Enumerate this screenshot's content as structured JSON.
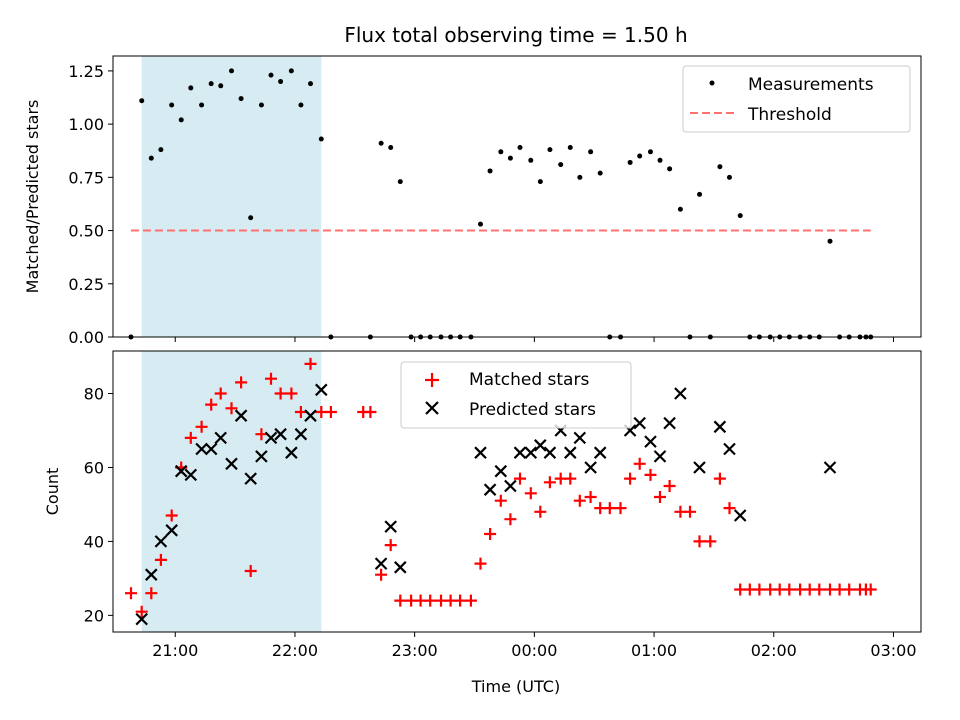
{
  "title": "Flux total observing time = 1.50 h",
  "colors": {
    "measurement": "#000000",
    "threshold": "#ff7070",
    "matched": "#ff0000",
    "predicted": "#000000",
    "shade": "#add8e6"
  },
  "chart_data": [
    {
      "type": "scatter",
      "ylabel": "Matched/Predicted stars",
      "xlim": [
        20.48,
        27.23
      ],
      "ylim": [
        0,
        1.32
      ],
      "y_ticks": [
        "0.00",
        "0.25",
        "0.50",
        "0.75",
        "1.00",
        "1.25"
      ],
      "y_tick_values": [
        0,
        0.25,
        0.5,
        0.75,
        1.0,
        1.25
      ],
      "shaded_x_range": [
        20.72,
        22.22
      ],
      "legend": {
        "location": "upper right",
        "entries": [
          "Measurements",
          "Threshold"
        ]
      },
      "threshold": {
        "name": "Threshold",
        "y": 0.5,
        "x_range": [
          20.63,
          26.81
        ],
        "style": "dashed"
      },
      "series": [
        {
          "name": "Measurements",
          "marker": "dot",
          "x": [
            20.63,
            20.72,
            20.8,
            20.88,
            20.97,
            21.05,
            21.13,
            21.22,
            21.3,
            21.38,
            21.47,
            21.55,
            21.63,
            21.72,
            21.8,
            21.88,
            21.97,
            22.05,
            22.13,
            22.22,
            22.3,
            22.63,
            22.72,
            22.8,
            22.88,
            22.97,
            23.05,
            23.13,
            23.22,
            23.3,
            23.38,
            23.47,
            23.55,
            23.63,
            23.72,
            23.8,
            23.88,
            23.97,
            24.05,
            24.13,
            24.22,
            24.3,
            24.38,
            24.47,
            24.55,
            24.63,
            24.72,
            24.8,
            24.88,
            24.97,
            25.05,
            25.13,
            25.22,
            25.3,
            25.38,
            25.47,
            25.55,
            25.63,
            25.72,
            25.8,
            25.88,
            25.97,
            26.05,
            26.13,
            26.22,
            26.3,
            26.38,
            26.47,
            26.55,
            26.63,
            26.72,
            26.77,
            26.81
          ],
          "y": [
            0.0,
            1.11,
            0.84,
            0.88,
            1.09,
            1.02,
            1.17,
            1.09,
            1.19,
            1.18,
            1.25,
            1.12,
            0.56,
            1.09,
            1.23,
            1.2,
            1.25,
            1.09,
            1.19,
            0.93,
            0.0,
            0.0,
            0.91,
            0.89,
            0.73,
            0.0,
            0.0,
            0.0,
            0.0,
            0.0,
            0.0,
            0.0,
            0.53,
            0.78,
            0.87,
            0.84,
            0.89,
            0.83,
            0.73,
            0.88,
            0.81,
            0.89,
            0.75,
            0.87,
            0.77,
            0.0,
            0.0,
            0.82,
            0.85,
            0.87,
            0.83,
            0.79,
            0.6,
            0.0,
            0.67,
            0.0,
            0.8,
            0.75,
            0.57,
            0.0,
            0.0,
            0.0,
            0.0,
            0.0,
            0.0,
            0.0,
            0.0,
            0.45,
            0.0,
            0.0,
            0.0,
            0.0,
            0.0
          ]
        }
      ]
    },
    {
      "type": "scatter",
      "xlabel": "Time (UTC)",
      "ylabel": "Count",
      "xlim": [
        20.48,
        27.23
      ],
      "ylim": [
        15.5,
        91.5
      ],
      "x_ticks": [
        "21:00",
        "22:00",
        "23:00",
        "00:00",
        "01:00",
        "02:00",
        "03:00"
      ],
      "x_tick_values": [
        21,
        22,
        23,
        24,
        25,
        26,
        27
      ],
      "y_ticks": [
        "20",
        "40",
        "60",
        "80"
      ],
      "y_tick_values": [
        20,
        40,
        60,
        80
      ],
      "shaded_x_range": [
        20.72,
        22.22
      ],
      "legend": {
        "location": "upper center",
        "entries": [
          "Matched stars",
          "Predicted stars"
        ]
      },
      "series": [
        {
          "name": "Matched stars",
          "marker": "plus",
          "x": [
            20.63,
            20.72,
            20.8,
            20.88,
            20.97,
            21.05,
            21.13,
            21.22,
            21.3,
            21.38,
            21.47,
            21.55,
            21.63,
            21.72,
            21.8,
            21.88,
            21.97,
            22.05,
            22.13,
            22.22,
            22.3,
            22.57,
            22.63,
            22.72,
            22.8,
            22.88,
            22.97,
            23.05,
            23.13,
            23.22,
            23.3,
            23.38,
            23.47,
            23.55,
            23.63,
            23.72,
            23.8,
            23.88,
            23.97,
            24.05,
            24.13,
            24.22,
            24.3,
            24.38,
            24.47,
            24.55,
            24.63,
            24.72,
            24.8,
            24.88,
            24.97,
            25.05,
            25.13,
            25.22,
            25.3,
            25.38,
            25.47,
            25.55,
            25.63,
            25.72,
            25.8,
            25.88,
            25.97,
            26.05,
            26.13,
            26.22,
            26.3,
            26.38,
            26.47,
            26.55,
            26.63,
            26.72,
            26.77,
            26.81
          ],
          "y": [
            26,
            21,
            26,
            35,
            47,
            60,
            68,
            71,
            77,
            80,
            76,
            83,
            32,
            69,
            84,
            80,
            80,
            75,
            88,
            75,
            75,
            75,
            75,
            31,
            39,
            24,
            24,
            24,
            24,
            24,
            24,
            24,
            24,
            34,
            42,
            51,
            46,
            57,
            53,
            48,
            56,
            57,
            57,
            51,
            52,
            49,
            49,
            49,
            57,
            61,
            58,
            52,
            55,
            48,
            48,
            40,
            40,
            57,
            49,
            27,
            27,
            27,
            27,
            27,
            27,
            27,
            27,
            27,
            27,
            27,
            27,
            27,
            27,
            27
          ]
        },
        {
          "name": "Predicted stars",
          "marker": "x",
          "x": [
            20.72,
            20.8,
            20.88,
            20.97,
            21.05,
            21.13,
            21.22,
            21.3,
            21.38,
            21.47,
            21.55,
            21.63,
            21.72,
            21.8,
            21.88,
            21.97,
            22.05,
            22.13,
            22.22,
            22.72,
            22.8,
            22.88,
            23.55,
            23.63,
            23.72,
            23.8,
            23.88,
            23.97,
            24.05,
            24.13,
            24.22,
            24.3,
            24.38,
            24.47,
            24.55,
            24.8,
            24.88,
            24.97,
            25.05,
            25.13,
            25.22,
            25.38,
            25.55,
            25.63,
            25.72,
            26.47
          ],
          "y": [
            19,
            31,
            40,
            43,
            59,
            58,
            65,
            65,
            68,
            61,
            74,
            57,
            63,
            68,
            69,
            64,
            69,
            74,
            81,
            34,
            44,
            33,
            64,
            54,
            59,
            55,
            64,
            64,
            66,
            64,
            70,
            64,
            68,
            60,
            64,
            70,
            72,
            67,
            63,
            72,
            80,
            60,
            71,
            65,
            47,
            60
          ]
        }
      ]
    }
  ]
}
